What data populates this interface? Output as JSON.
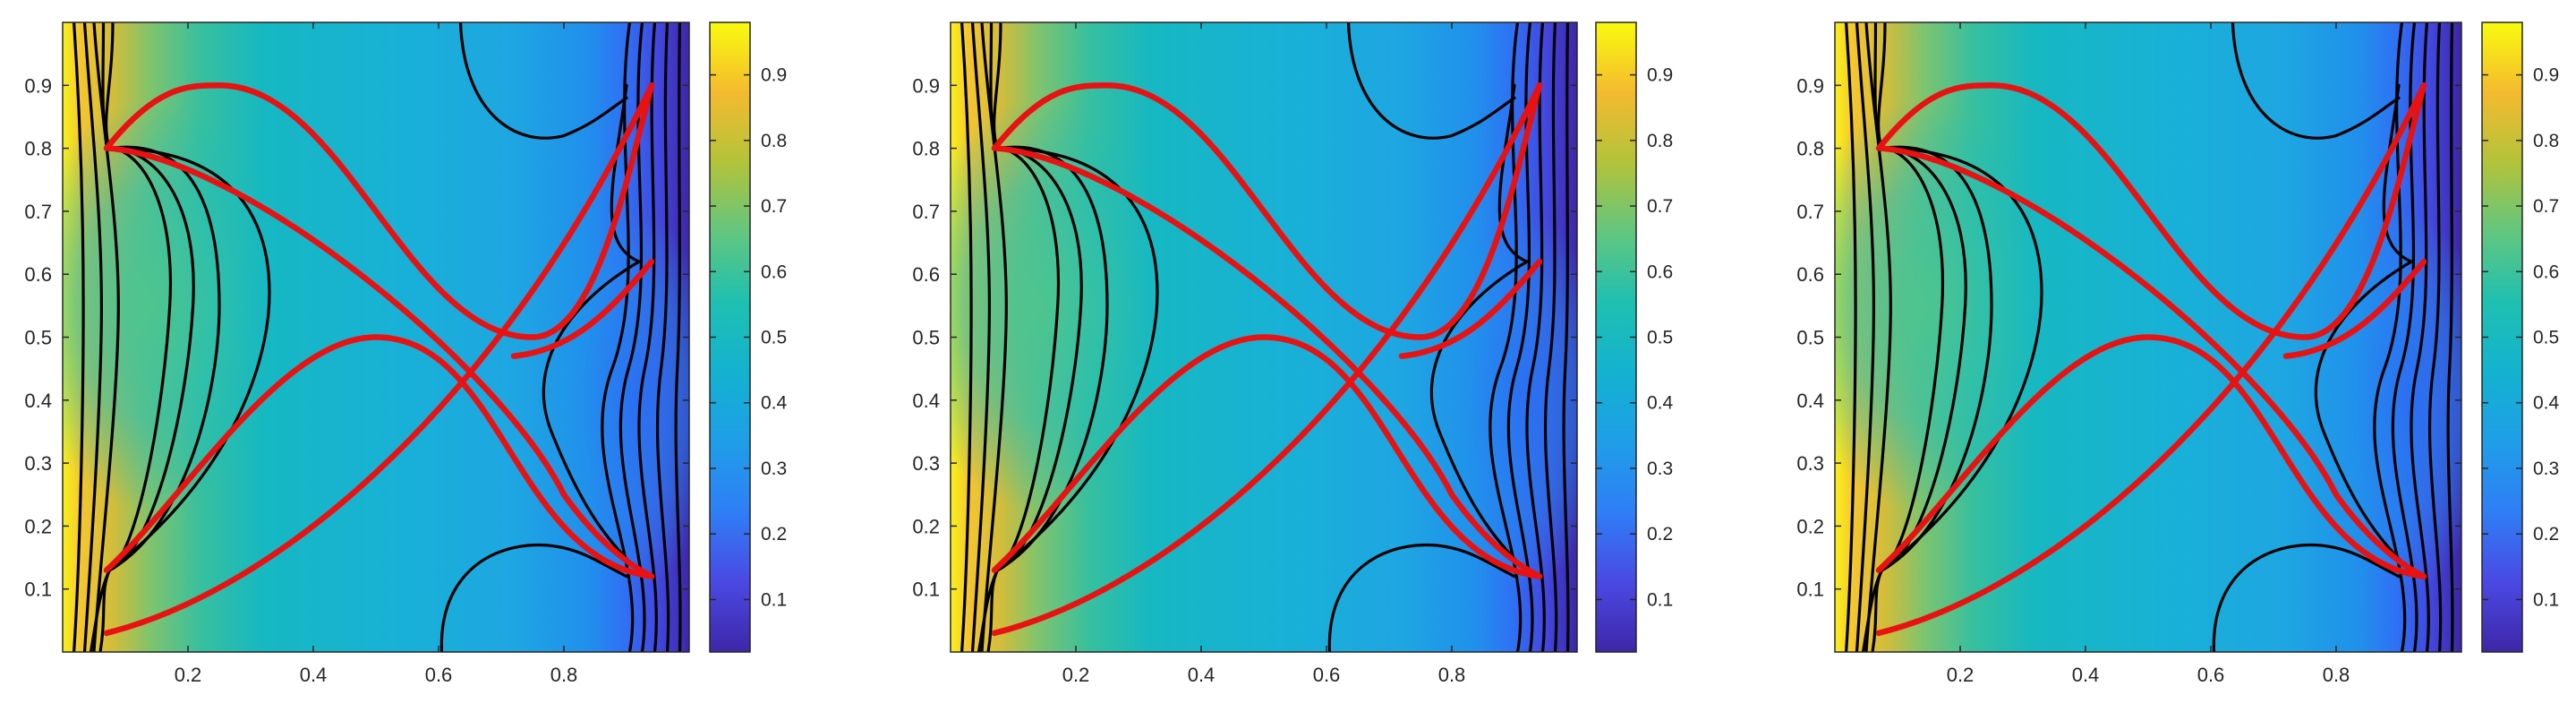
{
  "chart_data": [
    {
      "type": "heatmap",
      "panel": 1,
      "colormap": "parula",
      "xlim": [
        0,
        1
      ],
      "ylim": [
        0,
        1
      ],
      "x_ticks": [
        "0.2",
        "0.4",
        "0.6",
        "0.8"
      ],
      "y_ticks": [
        "0.1",
        "0.2",
        "0.3",
        "0.4",
        "0.5",
        "0.6",
        "0.7",
        "0.8",
        "0.9"
      ],
      "colorbar": {
        "range": [
          0.02,
          0.98
        ],
        "ticks": [
          "0.1",
          "0.2",
          "0.3",
          "0.4",
          "0.5",
          "0.6",
          "0.7",
          "0.8",
          "0.9"
        ]
      },
      "contour_levels": [
        0.1,
        0.2,
        0.3,
        0.4,
        0.5,
        0.6,
        0.7,
        0.8,
        0.9
      ],
      "red_curves": [
        {
          "from": [
            0.07,
            0.8
          ],
          "peak": [
            0.25,
            0.9
          ],
          "valley": [
            0.75,
            0.5
          ],
          "to": [
            0.94,
            0.9
          ]
        },
        {
          "from": [
            0.07,
            0.13
          ],
          "peak": [
            0.5,
            0.5
          ],
          "to": [
            0.94,
            0.62
          ]
        },
        {
          "from": [
            0.07,
            0.8
          ],
          "to": [
            0.94,
            0.12
          ]
        },
        {
          "from": [
            0.07,
            0.03
          ],
          "to": [
            0.94,
            0.9
          ]
        }
      ]
    },
    {
      "type": "heatmap",
      "panel": 2,
      "colormap": "parula",
      "xlim": [
        0,
        1
      ],
      "ylim": [
        0,
        1
      ],
      "x_ticks": [
        "0.2",
        "0.4",
        "0.6",
        "0.8"
      ],
      "y_ticks": [
        "0.1",
        "0.2",
        "0.3",
        "0.4",
        "0.5",
        "0.6",
        "0.7",
        "0.8",
        "0.9"
      ],
      "colorbar": {
        "range": [
          0.02,
          0.98
        ],
        "ticks": [
          "0.1",
          "0.2",
          "0.3",
          "0.4",
          "0.5",
          "0.6",
          "0.7",
          "0.8",
          "0.9"
        ]
      },
      "contour_levels": [
        0.1,
        0.2,
        0.3,
        0.4,
        0.5,
        0.6,
        0.7,
        0.8,
        0.9
      ],
      "red_curves": [
        {
          "from": [
            0.07,
            0.8
          ],
          "peak": [
            0.25,
            0.9
          ],
          "valley": [
            0.75,
            0.5
          ],
          "to": [
            0.94,
            0.9
          ]
        },
        {
          "from": [
            0.07,
            0.13
          ],
          "peak": [
            0.5,
            0.5
          ],
          "to": [
            0.94,
            0.62
          ]
        },
        {
          "from": [
            0.07,
            0.8
          ],
          "to": [
            0.94,
            0.12
          ]
        },
        {
          "from": [
            0.07,
            0.03
          ],
          "to": [
            0.94,
            0.9
          ]
        }
      ]
    },
    {
      "type": "heatmap",
      "panel": 3,
      "colormap": "parula",
      "xlim": [
        0,
        1
      ],
      "ylim": [
        0,
        1
      ],
      "x_ticks": [
        "0.2",
        "0.4",
        "0.6",
        "0.8"
      ],
      "y_ticks": [
        "0.1",
        "0.2",
        "0.3",
        "0.4",
        "0.5",
        "0.6",
        "0.7",
        "0.8",
        "0.9"
      ],
      "colorbar": {
        "range": [
          0.02,
          0.98
        ],
        "ticks": [
          "0.1",
          "0.2",
          "0.3",
          "0.4",
          "0.5",
          "0.6",
          "0.7",
          "0.8",
          "0.9"
        ]
      },
      "contour_levels": [
        0.1,
        0.2,
        0.3,
        0.4,
        0.5,
        0.6,
        0.7,
        0.8,
        0.9
      ],
      "red_curves": [
        {
          "from": [
            0.07,
            0.8
          ],
          "peak": [
            0.25,
            0.9
          ],
          "valley": [
            0.75,
            0.5
          ],
          "to": [
            0.94,
            0.9
          ]
        },
        {
          "from": [
            0.07,
            0.13
          ],
          "peak": [
            0.5,
            0.5
          ],
          "to": [
            0.94,
            0.62
          ]
        },
        {
          "from": [
            0.07,
            0.8
          ],
          "to": [
            0.94,
            0.12
          ]
        },
        {
          "from": [
            0.07,
            0.03
          ],
          "to": [
            0.94,
            0.9
          ]
        }
      ]
    }
  ],
  "colors": {
    "parula_stops": [
      "#3e26a8",
      "#4a49e3",
      "#2f7ef6",
      "#1f9ee8",
      "#13b2d0",
      "#1fc0b0",
      "#62c67f",
      "#b3c33a",
      "#f4ba2f",
      "#f9fb0e"
    ],
    "curve": "#e81212",
    "contour": "#000000",
    "axis": "#262626"
  }
}
